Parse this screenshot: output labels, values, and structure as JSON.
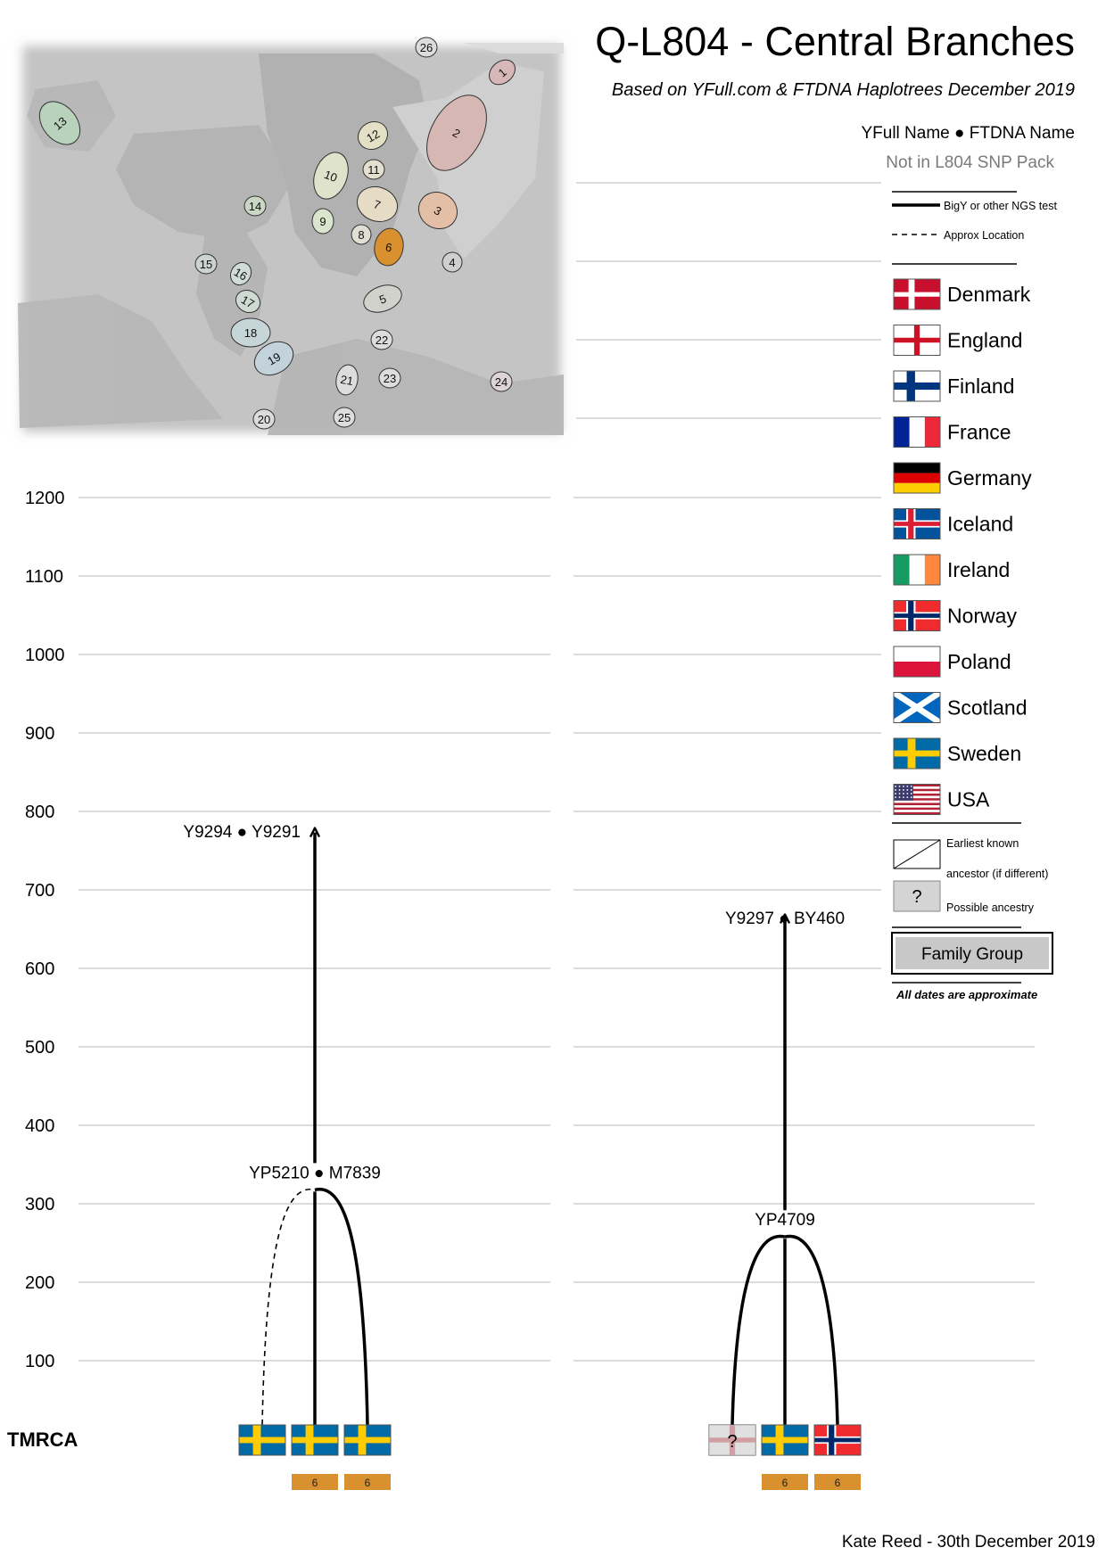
{
  "header": {
    "title": "Q-L804 - Central Branches",
    "subtitle": "Based on YFull.com & FTDNA Haplotrees December 2019",
    "name_key": "YFull Name ● FTDNA Name",
    "not_in_pack": "Not in L804 SNP Pack"
  },
  "map": {
    "regions": [
      {
        "label": "1",
        "color": "#d7b7b7"
      },
      {
        "label": "2",
        "color": "#d7b7b3"
      },
      {
        "label": "3",
        "color": "#e3bfa8"
      },
      {
        "label": "4",
        "color": "#cfcfcf"
      },
      {
        "label": "5",
        "color": "#d2d2cc"
      },
      {
        "label": "6",
        "color": "#d9902e"
      },
      {
        "label": "7",
        "color": "#e6dcc6"
      },
      {
        "label": "8",
        "color": "#e1dfd3"
      },
      {
        "label": "9",
        "color": "#dbe4cc"
      },
      {
        "label": "10",
        "color": "#dfe3cb"
      },
      {
        "label": "11",
        "color": "#e3e0d0"
      },
      {
        "label": "12",
        "color": "#e4e0c6"
      },
      {
        "label": "13",
        "color": "#b8d2bc"
      },
      {
        "label": "14",
        "color": "#c9d7c4"
      },
      {
        "label": "15",
        "color": "#cad3cf"
      },
      {
        "label": "16",
        "color": "#d2dcd7"
      },
      {
        "label": "17",
        "color": "#cfdbd2"
      },
      {
        "label": "18",
        "color": "#c5d5d8"
      },
      {
        "label": "19",
        "color": "#c3d3dc"
      },
      {
        "label": "20",
        "color": "#dcdcdc"
      },
      {
        "label": "21",
        "color": "#dddddd"
      },
      {
        "label": "22",
        "color": "#dddddd"
      },
      {
        "label": "23",
        "color": "#dddddd"
      },
      {
        "label": "24",
        "color": "#dcd4d6"
      },
      {
        "label": "25",
        "color": "#dddddd"
      },
      {
        "label": "26",
        "color": "#dcdcdc"
      }
    ]
  },
  "axis": {
    "ticks": [
      1200,
      1100,
      1000,
      900,
      800,
      700,
      600,
      500,
      400,
      300,
      200,
      100
    ],
    "base_label": "TMRCA"
  },
  "legend": {
    "line_solid": "BigY or other NGS test",
    "line_dashed": "Approx Location",
    "countries": [
      {
        "name": "Denmark",
        "flag": "denmark"
      },
      {
        "name": "England",
        "flag": "england"
      },
      {
        "name": "Finland",
        "flag": "finland"
      },
      {
        "name": "France",
        "flag": "france"
      },
      {
        "name": "Germany",
        "flag": "germany"
      },
      {
        "name": "Iceland",
        "flag": "iceland"
      },
      {
        "name": "Ireland",
        "flag": "ireland"
      },
      {
        "name": "Norway",
        "flag": "norway"
      },
      {
        "name": "Poland",
        "flag": "poland"
      },
      {
        "name": "Scotland",
        "flag": "scotland"
      },
      {
        "name": "Sweden",
        "flag": "sweden"
      },
      {
        "name": "USA",
        "flag": "usa"
      }
    ],
    "earliest_known_1": "Earliest known",
    "earliest_known_2": "ancestor (if different)",
    "possible_mark": "?",
    "possible_ancestry": "Possible ancestry",
    "family_group": "Family Group",
    "dates_note": "All dates are approximate"
  },
  "tree": {
    "left": {
      "top_node": "Y9294 ● Y9291",
      "top_node_date": 775,
      "arrow_tip": 780,
      "branch_node": "YP5210 ● M7839",
      "branch_node_date": 320,
      "leaves": [
        {
          "flag": "sweden",
          "line": "dashed",
          "region": ""
        },
        {
          "flag": "sweden",
          "line": "solid",
          "region": "6"
        },
        {
          "flag": "sweden",
          "line": "solid",
          "region": "6"
        }
      ]
    },
    "right": {
      "top_node": "Y9297 ● BY460",
      "top_node_date": 665,
      "arrow_tip": 670,
      "branch_node": "YP4709",
      "branch_node_date": 260,
      "leaves": [
        {
          "flag": "england",
          "line": "solid",
          "region": "",
          "possible": "?"
        },
        {
          "flag": "sweden",
          "line": "solid",
          "region": "6"
        },
        {
          "flag": "norway",
          "line": "solid",
          "region": "6"
        }
      ]
    }
  },
  "footer": {
    "credit": "Kate Reed - 30th December 2019"
  }
}
